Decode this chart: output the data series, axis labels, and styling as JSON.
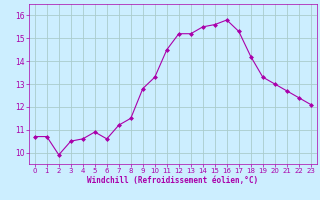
{
  "x": [
    0,
    1,
    2,
    3,
    4,
    5,
    6,
    7,
    8,
    9,
    10,
    11,
    12,
    13,
    14,
    15,
    16,
    17,
    18,
    19,
    20,
    21,
    22,
    23
  ],
  "y": [
    10.7,
    10.7,
    9.9,
    10.5,
    10.6,
    10.9,
    10.6,
    11.2,
    11.5,
    12.8,
    13.3,
    14.5,
    15.2,
    15.2,
    15.5,
    15.6,
    15.8,
    15.3,
    14.2,
    13.3,
    13.0,
    12.7,
    12.4,
    12.1
  ],
  "line_color": "#aa00aa",
  "marker": "D",
  "marker_size": 2,
  "bg_color": "#cceeff",
  "grid_color": "#aacccc",
  "xlabel": "Windchill (Refroidissement éolien,°C)",
  "xlabel_color": "#aa00aa",
  "tick_color": "#aa00aa",
  "ylim": [
    9.5,
    16.5
  ],
  "xlim": [
    -0.5,
    23.5
  ],
  "yticks": [
    10,
    11,
    12,
    13,
    14,
    15,
    16
  ],
  "xticks": [
    0,
    1,
    2,
    3,
    4,
    5,
    6,
    7,
    8,
    9,
    10,
    11,
    12,
    13,
    14,
    15,
    16,
    17,
    18,
    19,
    20,
    21,
    22,
    23
  ]
}
